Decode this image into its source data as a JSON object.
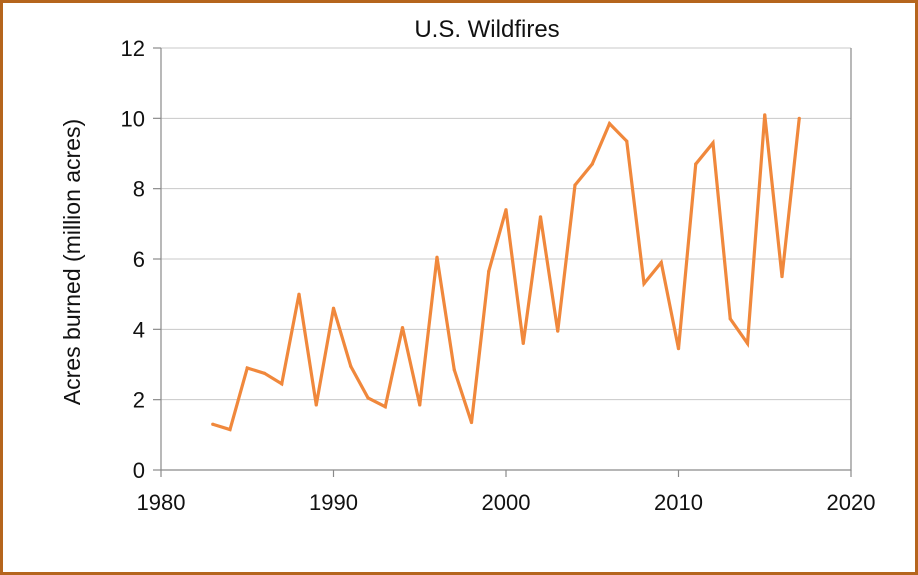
{
  "chart_data": {
    "type": "line",
    "title": "U.S. Wildfires",
    "xlabel": "",
    "ylabel": "Acres burned (million acres)",
    "xlim": [
      1980,
      2020
    ],
    "ylim": [
      0,
      12
    ],
    "x_ticks": [
      1980,
      1990,
      2000,
      2010,
      2020
    ],
    "y_ticks": [
      0,
      2,
      4,
      6,
      8,
      10,
      12
    ],
    "grid": "horizontal",
    "legend": "none",
    "series": [
      {
        "name": "Acres burned",
        "color": "#f0883c",
        "x": [
          1983,
          1984,
          1985,
          1986,
          1987,
          1988,
          1989,
          1990,
          1991,
          1992,
          1993,
          1994,
          1995,
          1996,
          1997,
          1998,
          1999,
          2000,
          2001,
          2002,
          2003,
          2004,
          2005,
          2006,
          2007,
          2008,
          2009,
          2010,
          2011,
          2012,
          2013,
          2014,
          2015,
          2016,
          2017
        ],
        "values": [
          1.3,
          1.15,
          2.9,
          2.75,
          2.45,
          5.0,
          1.85,
          4.6,
          2.95,
          2.05,
          1.8,
          4.05,
          1.85,
          6.05,
          2.85,
          1.35,
          5.65,
          7.4,
          3.6,
          7.2,
          3.95,
          8.1,
          8.7,
          9.85,
          9.35,
          5.3,
          5.9,
          3.45,
          8.7,
          9.3,
          4.3,
          3.6,
          10.1,
          5.5,
          10.0
        ]
      }
    ]
  }
}
